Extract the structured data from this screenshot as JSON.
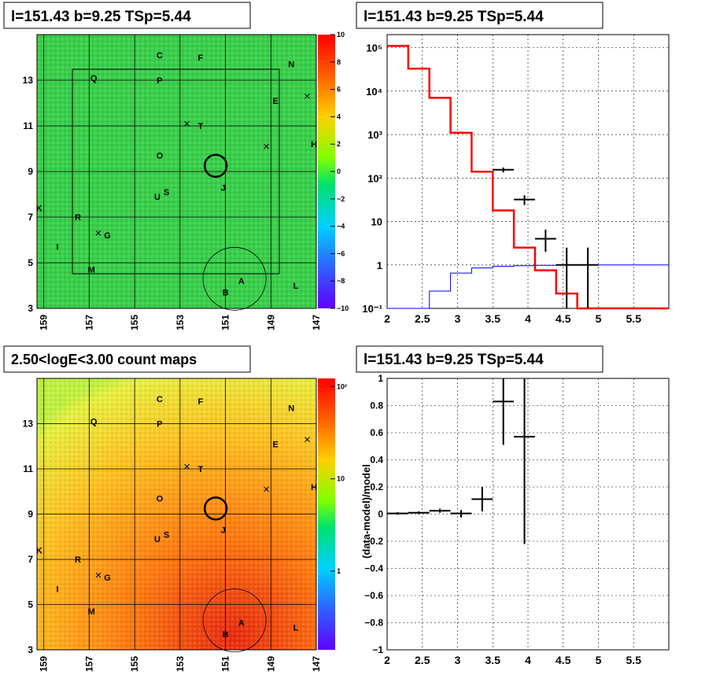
{
  "panels": {
    "top_left_title": "l=151.43 b=9.25 TSp=5.44",
    "top_right_title": "l=151.43 b=9.25 TSp=5.44",
    "bottom_left_title": "2.50<logE<3.00 count maps",
    "bottom_right_title": "l=151.43 b=9.25 TSp=5.44"
  },
  "maps": {
    "x_ticks": [
      "159",
      "157",
      "155",
      "153",
      "151",
      "149",
      "147"
    ],
    "y_ticks": [
      "3",
      "5",
      "7",
      "9",
      "11",
      "13"
    ],
    "source_labels": [
      {
        "label": "C",
        "l": 153.9,
        "b": 14.1
      },
      {
        "label": "F",
        "l": 152.1,
        "b": 14.0
      },
      {
        "label": "N",
        "l": 148.1,
        "b": 13.7
      },
      {
        "label": "Q",
        "l": 156.8,
        "b": 13.1
      },
      {
        "label": "P",
        "l": 153.9,
        "b": 13.0
      },
      {
        "label": "E",
        "l": 148.8,
        "b": 12.1
      },
      {
        "label": "T",
        "l": 152.1,
        "b": 11.0
      },
      {
        "label": "H",
        "l": 147.1,
        "b": 10.2
      },
      {
        "label": "O",
        "l": 153.9,
        "b": 9.7
      },
      {
        "label": "J",
        "l": 151.1,
        "b": 8.3
      },
      {
        "label": "U",
        "l": 154.0,
        "b": 7.9
      },
      {
        "label": "S",
        "l": 153.6,
        "b": 8.1
      },
      {
        "label": "K",
        "l": 159.2,
        "b": 7.4
      },
      {
        "label": "R",
        "l": 157.5,
        "b": 7.0
      },
      {
        "label": "G",
        "l": 156.2,
        "b": 6.2
      },
      {
        "label": "I",
        "l": 158.4,
        "b": 5.7
      },
      {
        "label": "M",
        "l": 156.9,
        "b": 4.7
      },
      {
        "label": "A",
        "l": 150.3,
        "b": 4.2
      },
      {
        "label": "L",
        "l": 147.9,
        "b": 4.0
      },
      {
        "label": "B",
        "l": 151.0,
        "b": 3.7
      }
    ],
    "cross_markers": [
      {
        "l": 147.4,
        "b": 12.3
      },
      {
        "l": 152.7,
        "b": 11.1
      },
      {
        "l": 149.2,
        "b": 10.1
      },
      {
        "l": 156.6,
        "b": 6.3
      }
    ],
    "target_circle": {
      "l": 151.43,
      "b": 9.25
    },
    "large_circle": {
      "l": 150.6,
      "b": 4.3
    }
  },
  "residual_colorbar": {
    "ticks": [
      "10",
      "8",
      "6",
      "4",
      "2",
      "0",
      "−2",
      "−4",
      "−6",
      "−8",
      "−10"
    ]
  },
  "counts_colorbar": {
    "ticks": [
      "10²",
      "10",
      "1"
    ],
    "scale": "log"
  },
  "chart_data": [
    {
      "type": "line",
      "panel": "spectrum",
      "x_ticks": [
        "2",
        "2.5",
        "3",
        "3.5",
        "4",
        "4.5",
        "5",
        "5.5"
      ],
      "y_ticks": [
        "10⁻¹",
        "1",
        "10",
        "10²",
        "10³",
        "10⁴",
        "10⁵"
      ],
      "xlim": [
        2,
        6
      ],
      "ylim": [
        0.1,
        200000
      ],
      "yscale": "log",
      "grid": true,
      "series": [
        {
          "color": "#ff0000",
          "bin_edges": [
            2.0,
            2.3,
            2.6,
            2.9,
            3.2,
            3.5,
            3.8,
            4.1,
            4.4,
            4.7,
            6.0
          ],
          "values": [
            110000,
            33000,
            7000,
            1100,
            140,
            18,
            2.5,
            0.75,
            0.22,
            0.1
          ]
        },
        {
          "color": "#0000ff",
          "bin_edges": [
            2.0,
            2.3,
            2.6,
            2.9,
            3.2,
            3.5,
            3.8,
            4.1,
            4.4,
            4.7,
            6.0
          ],
          "values": [
            0.05,
            0.07,
            0.25,
            0.65,
            0.85,
            0.93,
            0.96,
            0.98,
            0.99,
            1.0
          ]
        },
        {
          "color": "#000000",
          "points": [
            {
              "x": 3.65,
              "xerr": 0.15,
              "y": 155,
              "ylo": 135,
              "yhi": 175
            },
            {
              "x": 3.95,
              "xerr": 0.15,
              "y": 32,
              "ylo": 24,
              "yhi": 40
            },
            {
              "x": 4.25,
              "xerr": 0.15,
              "y": 4,
              "ylo": 2,
              "yhi": 6.5
            },
            {
              "x": 4.55,
              "xerr": 0.15,
              "y": 1,
              "ylo": 0.1,
              "yhi": 2.5
            },
            {
              "x": 4.85,
              "xerr": 0.15,
              "y": 1,
              "ylo": 0.1,
              "yhi": 2.5
            }
          ]
        }
      ]
    },
    {
      "type": "scatter",
      "panel": "residuals",
      "ylabel": "(data-model)/model",
      "x_ticks": [
        "2",
        "2.5",
        "3",
        "3.5",
        "4",
        "4.5",
        "5",
        "5.5"
      ],
      "y_ticks": [
        "1",
        "0.8",
        "0.6",
        "0.4",
        "0.2",
        "0",
        "−0.2",
        "−0.4",
        "−0.6",
        "−0.8",
        "−1"
      ],
      "xlim": [
        2,
        6
      ],
      "ylim": [
        -1,
        1
      ],
      "grid": true,
      "points": [
        {
          "x": 2.15,
          "xerr": 0.15,
          "y": 0.005,
          "ylo": -0.005,
          "yhi": 0.015
        },
        {
          "x": 2.45,
          "xerr": 0.15,
          "y": 0.01,
          "ylo": 0.0,
          "yhi": 0.02
        },
        {
          "x": 2.75,
          "xerr": 0.15,
          "y": 0.025,
          "ylo": 0.01,
          "yhi": 0.04
        },
        {
          "x": 3.05,
          "xerr": 0.15,
          "y": 0.005,
          "ylo": -0.025,
          "yhi": 0.03
        },
        {
          "x": 3.35,
          "xerr": 0.15,
          "y": 0.11,
          "ylo": 0.02,
          "yhi": 0.2
        },
        {
          "x": 3.65,
          "xerr": 0.15,
          "y": 0.83,
          "ylo": 0.51,
          "yhi": 1.2
        },
        {
          "x": 3.95,
          "xerr": 0.15,
          "y": 0.57,
          "ylo": -0.22,
          "yhi": 1.4
        }
      ]
    }
  ]
}
